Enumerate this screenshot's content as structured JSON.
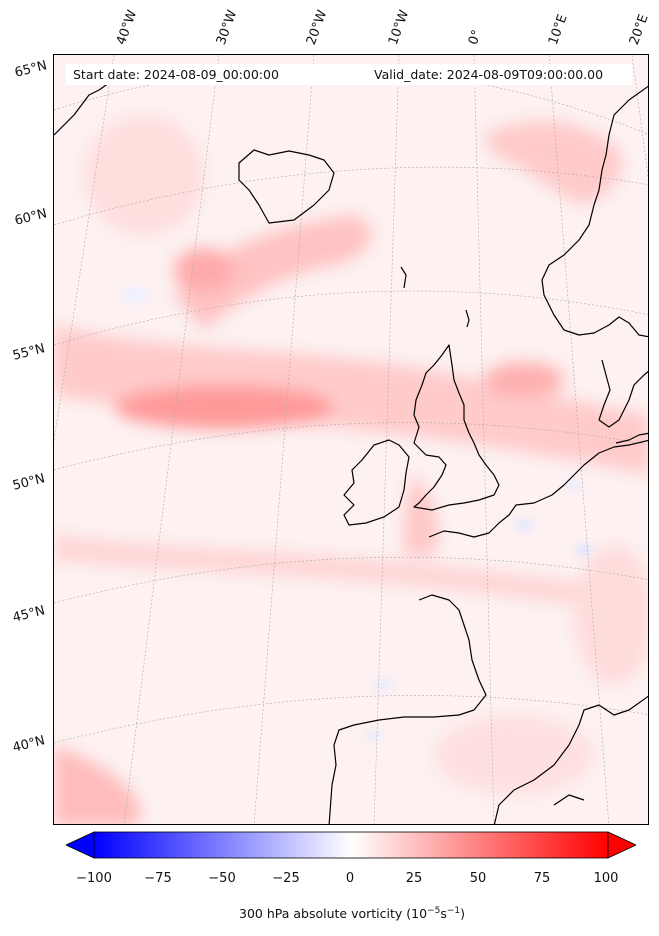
{
  "header": {
    "start_date": "Start date: 2024-08-09_00:00:00",
    "valid_date": "Valid_date: 2024-08-09T09:00:00.00"
  },
  "longitude_labels": [
    "40°W",
    "30°W",
    "20°W",
    "10°W",
    "0°",
    "10°E",
    "20°E"
  ],
  "latitude_labels": [
    "65°N",
    "60°N",
    "55°N",
    "50°N",
    "45°N",
    "40°N"
  ],
  "colorbar": {
    "ticks": [
      "−100",
      "−75",
      "−50",
      "−25",
      "0",
      "25",
      "50",
      "75",
      "100"
    ],
    "title_main": "300 hPa absolute vorticity (10",
    "title_exp1": "−5",
    "title_mid": "s",
    "title_exp2": "−1",
    "title_end": ")",
    "min": -100,
    "max": 100,
    "colors": {
      "negative": "#0000ff",
      "zero": "#ffffff",
      "positive": "#ff0000"
    }
  },
  "map": {
    "coastline_color": "#000000",
    "graticule_color": "#aaaaaa"
  }
}
